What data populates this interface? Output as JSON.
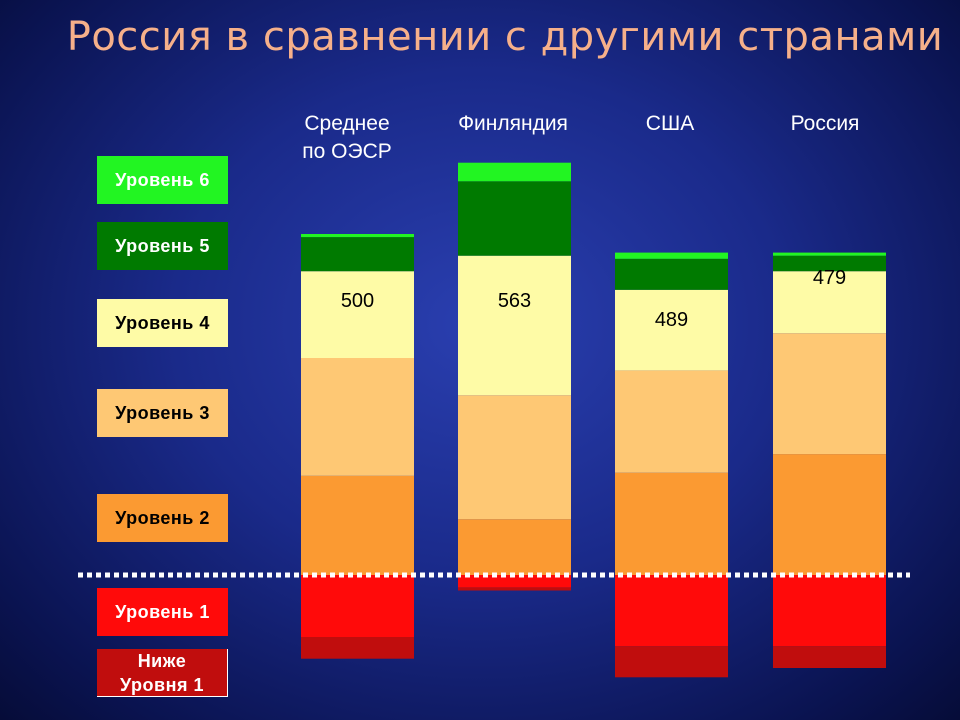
{
  "title": "Россия в сравнении с другими странами",
  "colors": {
    "below_1": "#c00d0d",
    "level_1": "#ff0a0a",
    "level_2": "#fb9a32",
    "level_3": "#fec874",
    "level_4": "#fefba6",
    "level_5": "#007a00",
    "level_6": "#22f522",
    "dotted_line": "#ffffff"
  },
  "legend": [
    {
      "key": "level_6",
      "label": "Уровень 6"
    },
    {
      "key": "level_5",
      "label": "Уровень 5"
    },
    {
      "key": "level_4",
      "label": "Уровень 4"
    },
    {
      "key": "level_3",
      "label": "Уровень 3"
    },
    {
      "key": "level_2",
      "label": "Уровень 2"
    },
    {
      "key": "level_1",
      "label": "Уровень 1"
    },
    {
      "key": "below_1",
      "label": "Ниже\nУровня 1"
    }
  ],
  "chart_data": {
    "type": "bar",
    "stacked": true,
    "diverging": true,
    "baseline_note": "dotted line at boundary between Level 1 and Level 2",
    "y_unit": "percent of students",
    "categories": [
      "Среднее\nпо ОЭСР",
      "Финляндия",
      "США",
      "Россия"
    ],
    "mean_scores": [
      "500",
      "563",
      "489",
      "479"
    ],
    "series": [
      {
        "key": "below_1",
        "values": [
          -7,
          -1,
          -10,
          -7
        ]
      },
      {
        "key": "level_1",
        "values": [
          -20,
          -4,
          -23,
          -23
        ]
      },
      {
        "key": "level_2",
        "values": [
          32,
          18,
          33,
          39
        ]
      },
      {
        "key": "level_3",
        "values": [
          38,
          40,
          33,
          39
        ]
      },
      {
        "key": "level_4",
        "values": [
          28,
          45,
          26,
          20
        ]
      },
      {
        "key": "level_5",
        "values": [
          11,
          24,
          10,
          5
        ]
      },
      {
        "key": "level_6",
        "values": [
          1,
          6,
          2,
          1
        ]
      }
    ]
  }
}
